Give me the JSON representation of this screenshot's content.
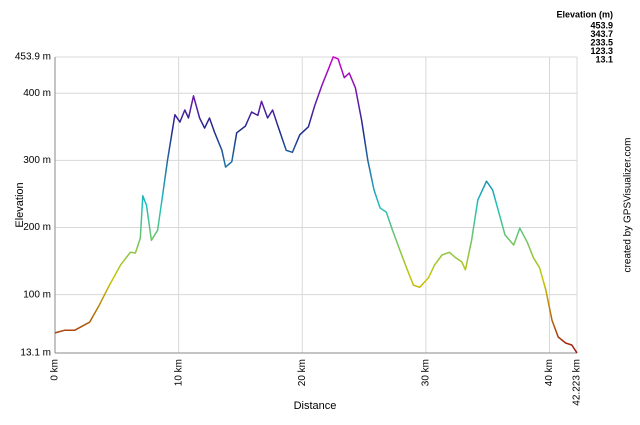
{
  "chart_data": {
    "type": "line",
    "x_label": "Distance",
    "y_label": "Elevation",
    "credit": "created by GPSVisualizer.com",
    "legend_title": "Elevation (m)",
    "color_scale": [
      {
        "value": 453.9,
        "color": "#cc00cc"
      },
      {
        "value": 343.7,
        "color": "#1c2c8c"
      },
      {
        "value": 233.5,
        "color": "#20c0c0"
      },
      {
        "value": 123.3,
        "color": "#c8c800"
      },
      {
        "value": 13.1,
        "color": "#a01010"
      }
    ],
    "xlim": [
      0,
      42.223
    ],
    "ylim": [
      13.1,
      453.9
    ],
    "xticks": [
      {
        "value": 0,
        "label": "0 km"
      },
      {
        "value": 10,
        "label": "10 km"
      },
      {
        "value": 20,
        "label": "20 km"
      },
      {
        "value": 30,
        "label": "30 km"
      },
      {
        "value": 40,
        "label": "40 km"
      },
      {
        "value": 42.223,
        "label": "42.223 km"
      }
    ],
    "yticks": [
      {
        "value": 13.1,
        "label": "13.1 m"
      },
      {
        "value": 100,
        "label": "100 m"
      },
      {
        "value": 200,
        "label": "200 m"
      },
      {
        "value": 300,
        "label": "300 m"
      },
      {
        "value": 400,
        "label": "400 m"
      },
      {
        "value": 453.9,
        "label": "453.9 m"
      }
    ],
    "grid": true,
    "series": [
      {
        "name": "Elevation",
        "x": [
          0,
          0.8,
          1.6,
          2.8,
          3.6,
          4.4,
          5.3,
          6.1,
          6.5,
          6.9,
          7.1,
          7.4,
          7.8,
          8.3,
          8.7,
          9.1,
          9.7,
          10.1,
          10.5,
          10.8,
          11.2,
          11.7,
          12.1,
          12.5,
          12.9,
          13.5,
          13.8,
          14.3,
          14.7,
          15.4,
          15.9,
          16.4,
          16.7,
          17.2,
          17.6,
          18.0,
          18.7,
          19.2,
          19.8,
          20.5,
          21.0,
          21.6,
          22.1,
          22.5,
          22.9,
          23.4,
          23.8,
          24.3,
          24.8,
          25.3,
          25.8,
          26.3,
          26.8,
          27.3,
          27.9,
          28.5,
          29.0,
          29.5,
          30.2,
          30.7,
          31.3,
          31.9,
          32.4,
          32.9,
          33.2,
          33.7,
          34.2,
          34.9,
          35.4,
          35.8,
          36.4,
          37.1,
          37.6,
          38.2,
          38.7,
          39.2,
          39.7,
          40.2,
          40.7,
          41.3,
          41.8,
          42.223
        ],
        "values": [
          43,
          47,
          47,
          59,
          85,
          114,
          144,
          163,
          162,
          184,
          247,
          233,
          181,
          196,
          248,
          300,
          368,
          357,
          375,
          363,
          396,
          363,
          348,
          363,
          342,
          315,
          290,
          298,
          341,
          351,
          372,
          367,
          388,
          363,
          375,
          353,
          315,
          312,
          338,
          350,
          381,
          412,
          435,
          454,
          451,
          423,
          430,
          408,
          360,
          300,
          256,
          229,
          223,
          196,
          166,
          137,
          114,
          111,
          125,
          144,
          159,
          163,
          155,
          149,
          137,
          181,
          241,
          269,
          256,
          229,
          189,
          174,
          199,
          178,
          155,
          140,
          107,
          62,
          37,
          28,
          25,
          13.1
        ]
      }
    ]
  }
}
